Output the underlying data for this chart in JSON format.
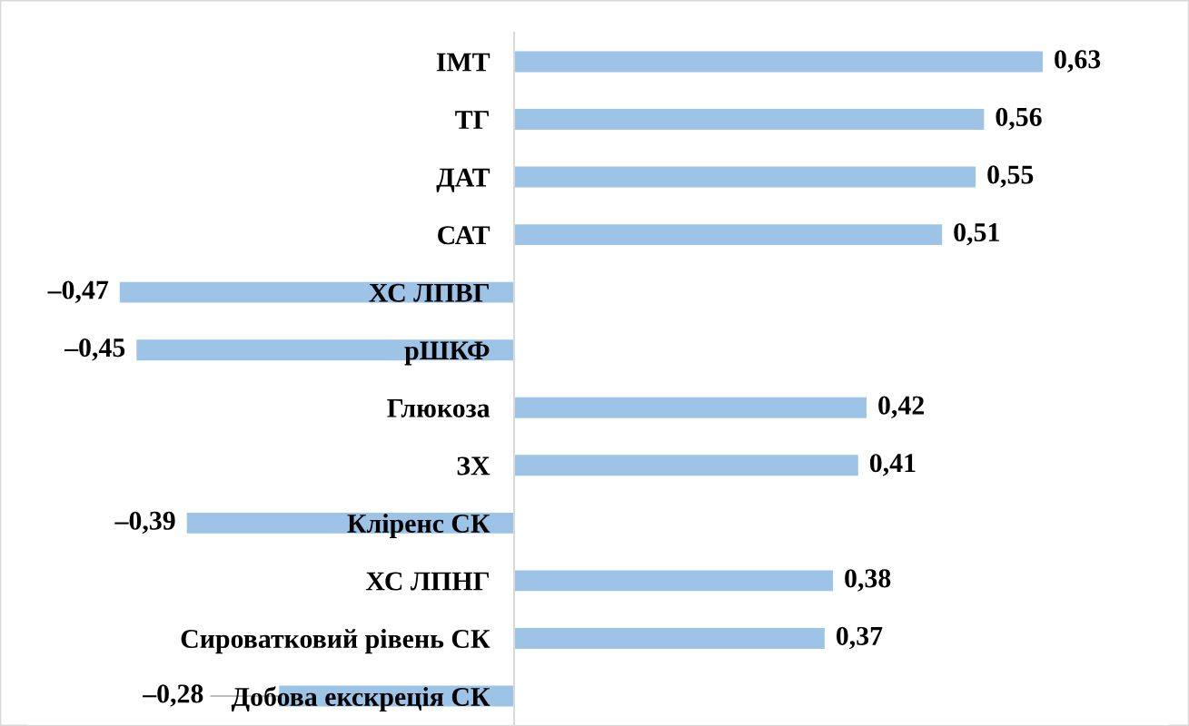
{
  "chart_data": {
    "type": "bar",
    "orientation": "horizontal",
    "categories": [
      "ІМТ",
      "ТГ",
      "ДАТ",
      "САТ",
      "ХС ЛПВГ",
      "рШКФ",
      "Глюкоза",
      "ЗХ",
      "Кліренс СК",
      "ХС ЛПНГ",
      "Сироватковий рівень СК",
      "Добова екскреція СК"
    ],
    "values": [
      0.63,
      0.56,
      0.55,
      0.51,
      -0.47,
      -0.45,
      0.42,
      0.41,
      -0.39,
      0.38,
      0.37,
      -0.28
    ],
    "value_labels": [
      "0,63",
      "0,56",
      "0,55",
      "0,51",
      "–0,47",
      "–0,45",
      "0,42",
      "0,41",
      "–0,39",
      "0,38",
      "0,37",
      "–0,28"
    ],
    "color": "#9dc3e6",
    "tick_labels": "y",
    "grid": false
  }
}
